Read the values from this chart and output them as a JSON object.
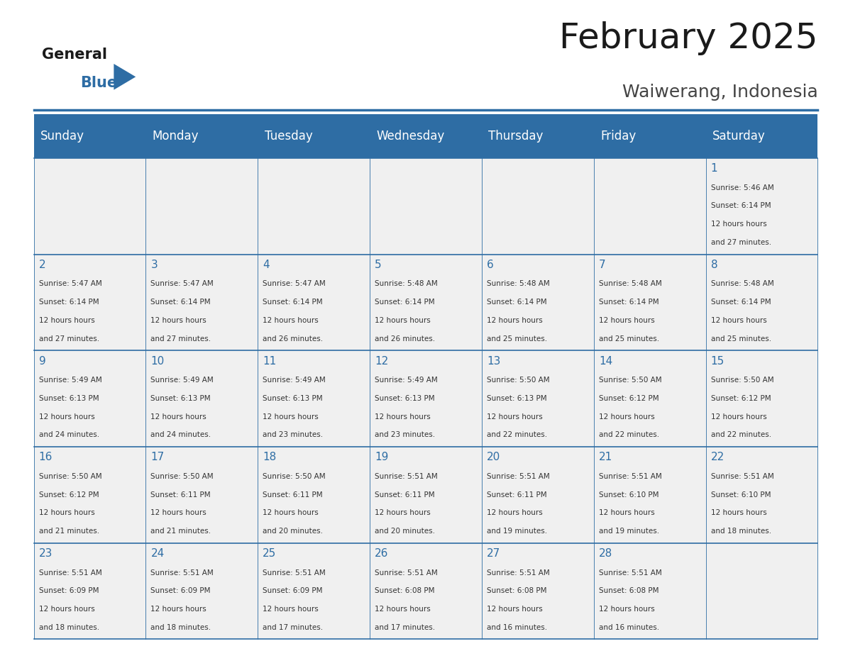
{
  "title": "February 2025",
  "subtitle": "Waiwerang, Indonesia",
  "header_bg": "#2E6DA4",
  "header_text": "#FFFFFF",
  "cell_bg_light": "#F0F0F0",
  "day_number_color": "#2E6DA4",
  "text_color": "#333333",
  "line_color": "#2E6DA4",
  "days_of_week": [
    "Sunday",
    "Monday",
    "Tuesday",
    "Wednesday",
    "Thursday",
    "Friday",
    "Saturday"
  ],
  "calendar_data": [
    [
      null,
      null,
      null,
      null,
      null,
      null,
      {
        "day": 1,
        "sunrise": "5:46 AM",
        "sunset": "6:14 PM",
        "daylight": "12 hours and 27 minutes."
      }
    ],
    [
      {
        "day": 2,
        "sunrise": "5:47 AM",
        "sunset": "6:14 PM",
        "daylight": "12 hours and 27 minutes."
      },
      {
        "day": 3,
        "sunrise": "5:47 AM",
        "sunset": "6:14 PM",
        "daylight": "12 hours and 27 minutes."
      },
      {
        "day": 4,
        "sunrise": "5:47 AM",
        "sunset": "6:14 PM",
        "daylight": "12 hours and 26 minutes."
      },
      {
        "day": 5,
        "sunrise": "5:48 AM",
        "sunset": "6:14 PM",
        "daylight": "12 hours and 26 minutes."
      },
      {
        "day": 6,
        "sunrise": "5:48 AM",
        "sunset": "6:14 PM",
        "daylight": "12 hours and 25 minutes."
      },
      {
        "day": 7,
        "sunrise": "5:48 AM",
        "sunset": "6:14 PM",
        "daylight": "12 hours and 25 minutes."
      },
      {
        "day": 8,
        "sunrise": "5:48 AM",
        "sunset": "6:14 PM",
        "daylight": "12 hours and 25 minutes."
      }
    ],
    [
      {
        "day": 9,
        "sunrise": "5:49 AM",
        "sunset": "6:13 PM",
        "daylight": "12 hours and 24 minutes."
      },
      {
        "day": 10,
        "sunrise": "5:49 AM",
        "sunset": "6:13 PM",
        "daylight": "12 hours and 24 minutes."
      },
      {
        "day": 11,
        "sunrise": "5:49 AM",
        "sunset": "6:13 PM",
        "daylight": "12 hours and 23 minutes."
      },
      {
        "day": 12,
        "sunrise": "5:49 AM",
        "sunset": "6:13 PM",
        "daylight": "12 hours and 23 minutes."
      },
      {
        "day": 13,
        "sunrise": "5:50 AM",
        "sunset": "6:13 PM",
        "daylight": "12 hours and 22 minutes."
      },
      {
        "day": 14,
        "sunrise": "5:50 AM",
        "sunset": "6:12 PM",
        "daylight": "12 hours and 22 minutes."
      },
      {
        "day": 15,
        "sunrise": "5:50 AM",
        "sunset": "6:12 PM",
        "daylight": "12 hours and 22 minutes."
      }
    ],
    [
      {
        "day": 16,
        "sunrise": "5:50 AM",
        "sunset": "6:12 PM",
        "daylight": "12 hours and 21 minutes."
      },
      {
        "day": 17,
        "sunrise": "5:50 AM",
        "sunset": "6:11 PM",
        "daylight": "12 hours and 21 minutes."
      },
      {
        "day": 18,
        "sunrise": "5:50 AM",
        "sunset": "6:11 PM",
        "daylight": "12 hours and 20 minutes."
      },
      {
        "day": 19,
        "sunrise": "5:51 AM",
        "sunset": "6:11 PM",
        "daylight": "12 hours and 20 minutes."
      },
      {
        "day": 20,
        "sunrise": "5:51 AM",
        "sunset": "6:11 PM",
        "daylight": "12 hours and 19 minutes."
      },
      {
        "day": 21,
        "sunrise": "5:51 AM",
        "sunset": "6:10 PM",
        "daylight": "12 hours and 19 minutes."
      },
      {
        "day": 22,
        "sunrise": "5:51 AM",
        "sunset": "6:10 PM",
        "daylight": "12 hours and 18 minutes."
      }
    ],
    [
      {
        "day": 23,
        "sunrise": "5:51 AM",
        "sunset": "6:09 PM",
        "daylight": "12 hours and 18 minutes."
      },
      {
        "day": 24,
        "sunrise": "5:51 AM",
        "sunset": "6:09 PM",
        "daylight": "12 hours and 18 minutes."
      },
      {
        "day": 25,
        "sunrise": "5:51 AM",
        "sunset": "6:09 PM",
        "daylight": "12 hours and 17 minutes."
      },
      {
        "day": 26,
        "sunrise": "5:51 AM",
        "sunset": "6:08 PM",
        "daylight": "12 hours and 17 minutes."
      },
      {
        "day": 27,
        "sunrise": "5:51 AM",
        "sunset": "6:08 PM",
        "daylight": "12 hours and 16 minutes."
      },
      {
        "day": 28,
        "sunrise": "5:51 AM",
        "sunset": "6:08 PM",
        "daylight": "12 hours and 16 minutes."
      },
      null
    ]
  ]
}
